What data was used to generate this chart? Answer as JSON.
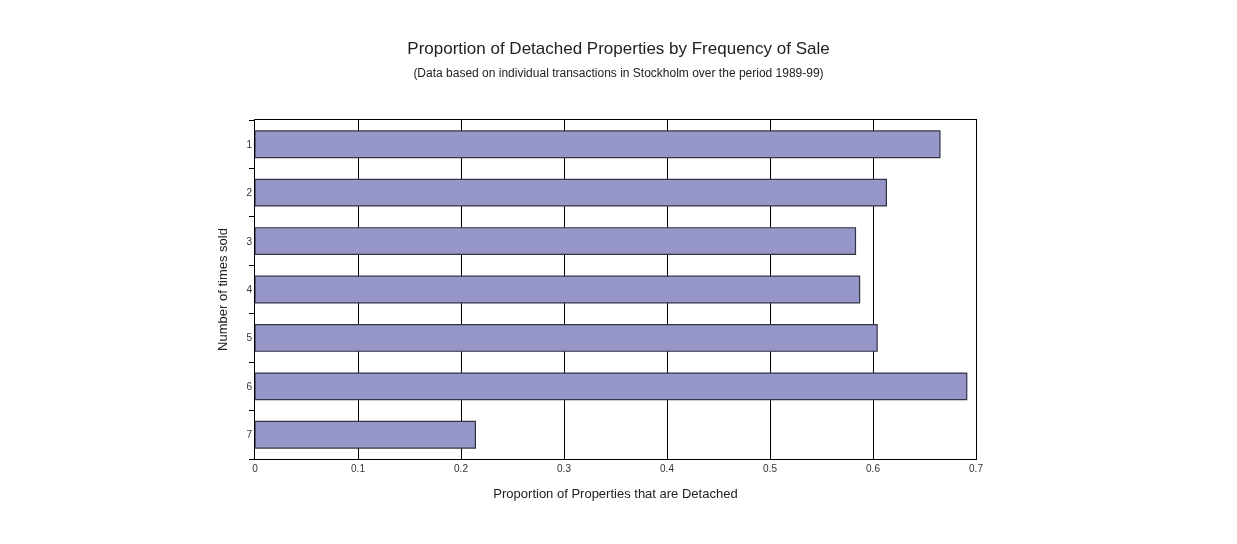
{
  "chart_data": {
    "type": "bar",
    "orientation": "horizontal",
    "title": "Proportion of Detached Properties by Frequency of Sale",
    "subtitle": "(Data based on individual transactions in Stockholm over the period 1989-99)",
    "xlabel": "Proportion of Properties that are Detached",
    "ylabel": "Number of times sold",
    "categories": [
      "1",
      "2",
      "3",
      "4",
      "5",
      "6",
      "7"
    ],
    "values": [
      0.665,
      0.613,
      0.583,
      0.587,
      0.604,
      0.691,
      0.214
    ],
    "color": "#9696c8",
    "xlim": [
      0,
      0.7
    ],
    "xticks": [
      0,
      0.1,
      0.2,
      0.3,
      0.4,
      0.5,
      0.6,
      0.7
    ],
    "grid": "x"
  }
}
